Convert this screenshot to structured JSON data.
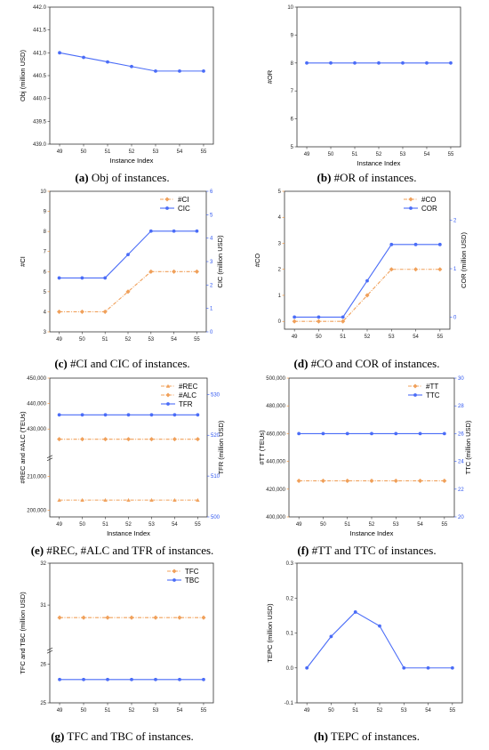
{
  "colors": {
    "blue": "#4a6cf7",
    "orange": "#f0a05a",
    "axis_blue": "#2f56f0",
    "axis_orange": "#f08a2a"
  },
  "chart_data": [
    {
      "id": "a",
      "type": "line",
      "caption_letter": "(a)",
      "caption_text": " Obj of instances.",
      "x": [
        49,
        50,
        51,
        52,
        53,
        54,
        55
      ],
      "xlabel": "Instance Index",
      "ylabel": "Obj (million USD)",
      "ylim": [
        439.0,
        442.0
      ],
      "yticks": [
        "439.0",
        "439.5",
        "440.0",
        "440.5",
        "441.0",
        "441.5",
        "442.0"
      ],
      "series": [
        {
          "axis": "left",
          "style": "blue",
          "values": [
            441.0,
            440.9,
            440.8,
            440.7,
            440.6,
            440.6,
            440.6
          ]
        }
      ]
    },
    {
      "id": "b",
      "type": "line",
      "caption_letter": "(b)",
      "caption_text": " #OR of instances.",
      "x": [
        49,
        50,
        51,
        52,
        53,
        54,
        55
      ],
      "xlabel": "Instance Index",
      "ylabel": "#OR",
      "ylim": [
        5,
        10
      ],
      "yticks": [
        "5",
        "6",
        "7",
        "8",
        "9",
        "10"
      ],
      "series": [
        {
          "axis": "left",
          "style": "blue",
          "values": [
            8,
            8,
            8,
            8,
            8,
            8,
            8
          ]
        }
      ]
    },
    {
      "id": "c",
      "type": "line",
      "caption_letter": "(c)",
      "caption_text": " #CI and CIC of instances.",
      "x": [
        49,
        50,
        51,
        52,
        53,
        54,
        55
      ],
      "xlabel": "",
      "ylabel": "#CI",
      "ylabel_right": "CIC (million USD)",
      "ylim": [
        3,
        10
      ],
      "ylim_right": [
        0,
        6
      ],
      "yticks": [
        "3",
        "4",
        "5",
        "6",
        "7",
        "8",
        "9",
        "10"
      ],
      "yticks_right": [
        "0",
        "1",
        "2",
        "3",
        "4",
        "5",
        "6"
      ],
      "legend": "top-right",
      "series": [
        {
          "name": "#CI",
          "axis": "left",
          "style": "orange",
          "values": [
            4,
            4,
            4,
            5,
            6,
            6,
            6
          ]
        },
        {
          "name": "CIC",
          "axis": "right",
          "style": "blue",
          "values": [
            2.3,
            2.3,
            2.3,
            3.3,
            4.3,
            4.3,
            4.3
          ]
        }
      ]
    },
    {
      "id": "d",
      "type": "line",
      "caption_letter": "(d)",
      "caption_text": " #CO and COR of instances.",
      "x": [
        49,
        50,
        51,
        52,
        53,
        54,
        55
      ],
      "xlabel": "",
      "ylabel": "#CO",
      "ylabel_right": "COR (million USD)",
      "ylim": [
        -0.3,
        5
      ],
      "ylim_right": [
        -0.25,
        2.6
      ],
      "yticks_pos": [
        0,
        1,
        2,
        3,
        4,
        5
      ],
      "yticks": [
        "0",
        "1",
        "2",
        "3",
        "4",
        "5"
      ],
      "yticks_right_pos": [
        0,
        1,
        2
      ],
      "yticks_right": [
        "0",
        "1",
        "2"
      ],
      "legend": "top-right",
      "series": [
        {
          "name": "#CO",
          "axis": "left",
          "style": "orange",
          "values": [
            0,
            0,
            0,
            1,
            2,
            2,
            2
          ]
        },
        {
          "name": "COR",
          "axis": "right",
          "style": "blue",
          "values": [
            0,
            0,
            0,
            0.75,
            1.5,
            1.5,
            1.5
          ]
        }
      ]
    },
    {
      "id": "e",
      "type": "line",
      "caption_letter": "(e)",
      "caption_text": " #REC, #ALC and TFR of instances.",
      "x": [
        49,
        50,
        51,
        52,
        53,
        54,
        55
      ],
      "xlabel": "Instance Index",
      "ylabel": "#REC and #ALC (TEUs)",
      "ylabel_right": "TFR (million USD)",
      "broken_axis": true,
      "yticks": [
        "200,000",
        "210,000",
        "430,000",
        "440,000",
        "450,000"
      ],
      "yticks_right": [
        "500",
        "510",
        "520",
        "530"
      ],
      "ylim_right": [
        500,
        534
      ],
      "legend": "top-right",
      "series": [
        {
          "name": "#REC",
          "axis": "left",
          "style": "orange-triangle",
          "values": [
            203000,
            203000,
            203000,
            203000,
            203000,
            203000,
            203000
          ]
        },
        {
          "name": "#ALC",
          "axis": "left",
          "style": "orange",
          "values": [
            426000,
            426000,
            426000,
            426000,
            426000,
            426000,
            426000
          ]
        },
        {
          "name": "TFR",
          "axis": "right",
          "style": "blue",
          "values": [
            525,
            525,
            525,
            525,
            525,
            525,
            525
          ]
        }
      ]
    },
    {
      "id": "f",
      "type": "line",
      "caption_letter": "(f)",
      "caption_text": " #TT and TTC of instances.",
      "x": [
        49,
        50,
        51,
        52,
        53,
        54,
        55
      ],
      "xlabel": "Instance Index",
      "ylabel": "#TT (TEUs)",
      "ylabel_right": "TTC (million USD)",
      "ylim": [
        400000,
        500000
      ],
      "ylim_right": [
        20,
        30
      ],
      "yticks": [
        "400,000",
        "420,000",
        "440,000",
        "460,000",
        "480,000",
        "500,000"
      ],
      "yticks_right": [
        "20",
        "22",
        "24",
        "26",
        "28",
        "30"
      ],
      "legend": "top-right",
      "series": [
        {
          "name": "#TT",
          "axis": "left",
          "style": "orange",
          "values": [
            426000,
            426000,
            426000,
            426000,
            426000,
            426000,
            426000
          ]
        },
        {
          "name": "TTC",
          "axis": "right",
          "style": "blue",
          "values": [
            26,
            26,
            26,
            26,
            26,
            26,
            26
          ]
        }
      ]
    },
    {
      "id": "g",
      "type": "line",
      "caption_letter": "(g)",
      "caption_text": " TFC and TBC of instances.",
      "x": [
        49,
        50,
        51,
        52,
        53,
        54,
        55
      ],
      "xlabel": "",
      "ylabel": "TFC and TBC (million USD)",
      "broken_axis": true,
      "yticks": [
        "25",
        "26",
        "31",
        "32"
      ],
      "legend": "top-right",
      "series": [
        {
          "name": "TFC",
          "axis": "left",
          "style": "orange",
          "values": [
            30.7,
            30.7,
            30.7,
            30.7,
            30.7,
            30.7,
            30.7
          ]
        },
        {
          "name": "TBC",
          "axis": "left",
          "style": "blue",
          "values": [
            25.6,
            25.6,
            25.6,
            25.6,
            25.6,
            25.6,
            25.6
          ]
        }
      ]
    },
    {
      "id": "h",
      "type": "line",
      "caption_letter": "(h)",
      "caption_text": " TEPC of instances.",
      "x": [
        49,
        50,
        51,
        52,
        53,
        54,
        55
      ],
      "xlabel": "",
      "ylabel": "TEPC (million USD)",
      "ylim": [
        -0.1,
        0.3
      ],
      "yticks": [
        "-0.1",
        "0.0",
        "0.1",
        "0.2",
        "0.3"
      ],
      "series": [
        {
          "axis": "left",
          "style": "blue",
          "values": [
            0.0,
            0.09,
            0.16,
            0.12,
            0.0,
            0.0,
            0.0
          ]
        }
      ]
    }
  ]
}
